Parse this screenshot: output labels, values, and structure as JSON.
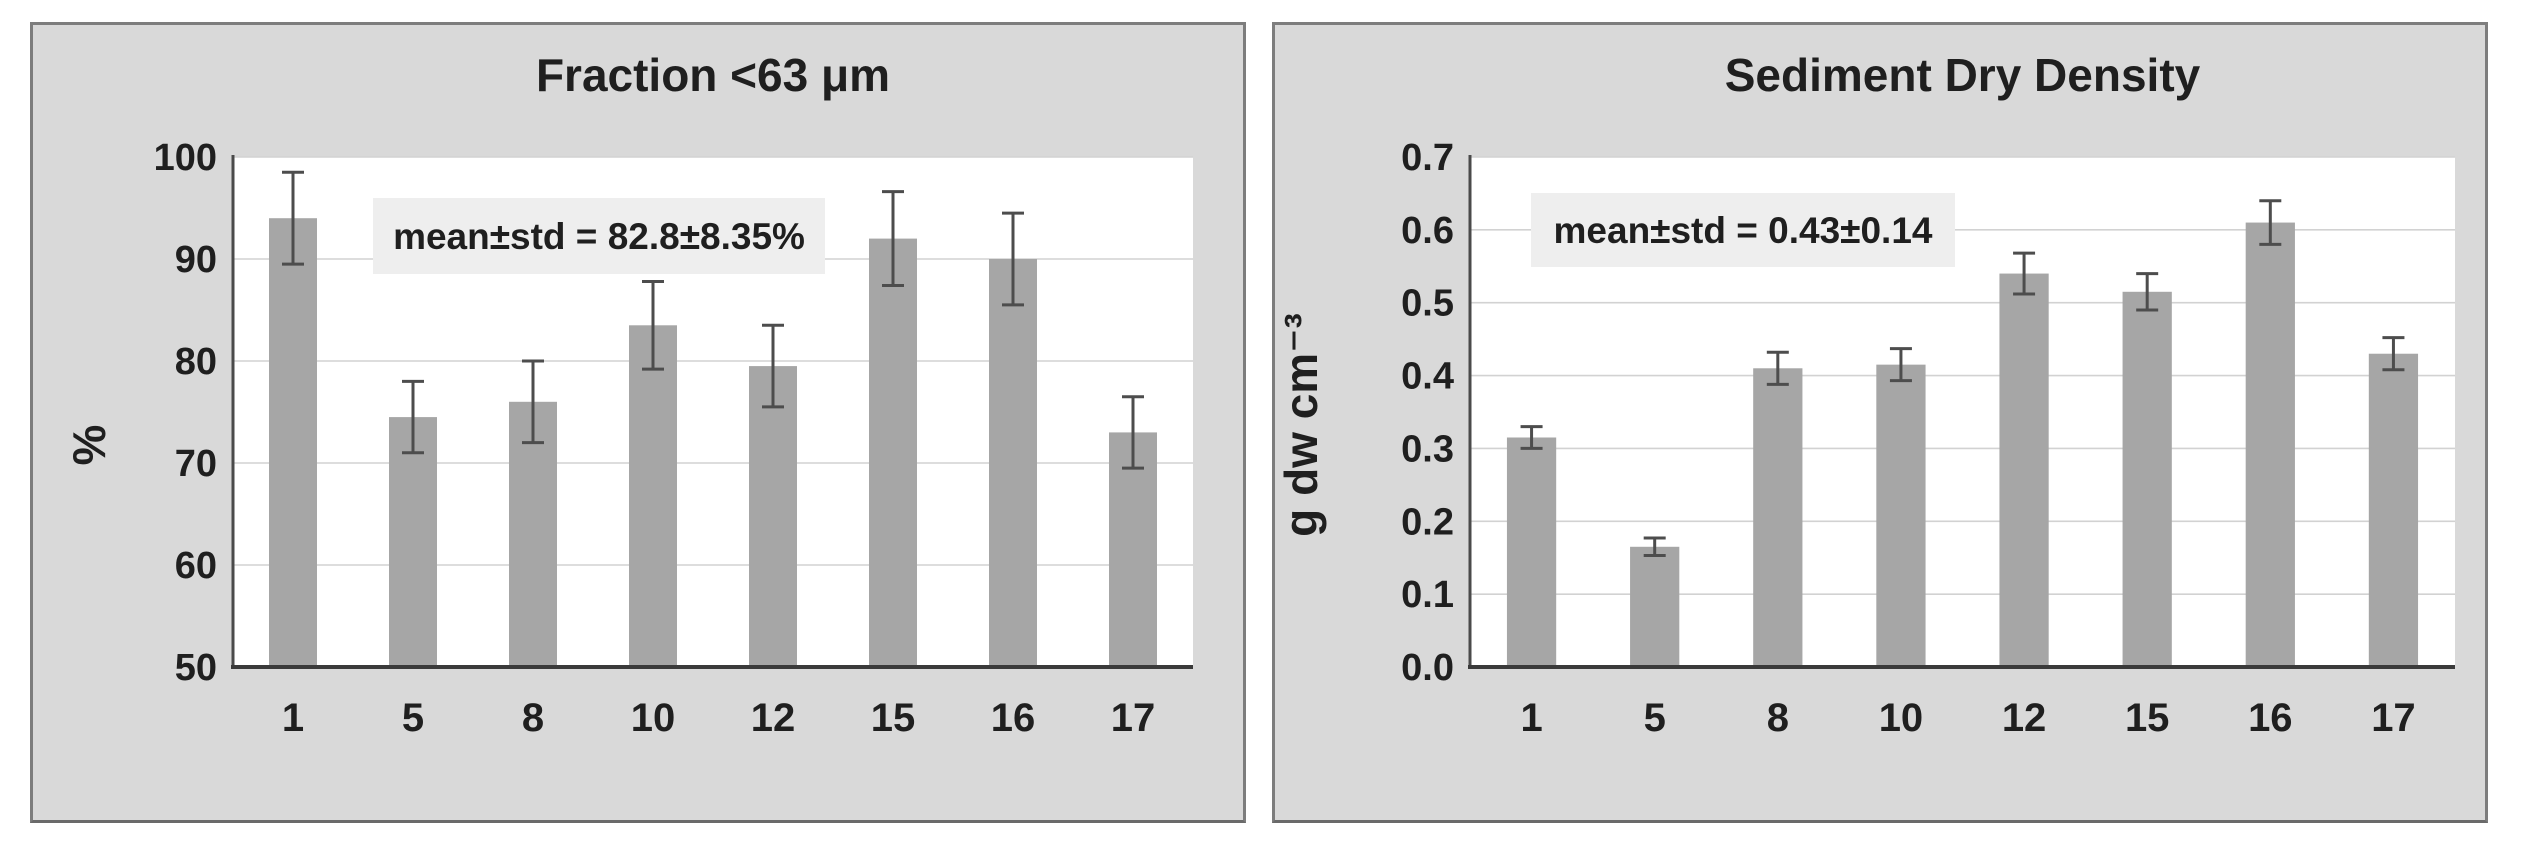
{
  "colors": {
    "page_bg": "#ffffff",
    "panel_bg": "#d9d9d9",
    "panel_border": "#7d7d7d",
    "plot_bg": "#ffffff",
    "gridline": "#d2d2d2",
    "bar": "#a6a6a6",
    "error_bar": "#4d4d4d",
    "x_axis": "#3a3a3a",
    "y_axis": "#4a4a4a",
    "text": "#1f1f1f",
    "annotation_bg": "#eeeeee"
  },
  "chart_data": [
    {
      "type": "bar",
      "title": "Fraction <63 μm",
      "xlabel": "",
      "ylabel": "%",
      "categories": [
        "1",
        "5",
        "8",
        "10",
        "12",
        "15",
        "16",
        "17"
      ],
      "values": [
        94,
        74.5,
        76,
        83.5,
        79.5,
        92,
        90,
        73
      ],
      "errors": [
        4.5,
        3.5,
        4.0,
        4.3,
        4.0,
        4.6,
        4.5,
        3.5
      ],
      "annotation": "mean±std = 82.8±8.35%",
      "ylim": [
        50,
        100
      ],
      "ytick_step": 10,
      "ytick_decimals": 0,
      "grid": true,
      "legend_position": "none",
      "bar_color": "#a6a6a6"
    },
    {
      "type": "bar",
      "title": "Sediment Dry Density",
      "xlabel": "",
      "ylabel": "g dw cm⁻³",
      "categories": [
        "1",
        "5",
        "8",
        "10",
        "12",
        "15",
        "16",
        "17"
      ],
      "values": [
        0.315,
        0.165,
        0.41,
        0.415,
        0.54,
        0.515,
        0.61,
        0.43
      ],
      "errors": [
        0.015,
        0.012,
        0.022,
        0.022,
        0.028,
        0.025,
        0.03,
        0.022
      ],
      "annotation": "mean±std = 0.43±0.14",
      "ylim": [
        0,
        0.7
      ],
      "ytick_step": 0.1,
      "ytick_decimals": 1,
      "grid": true,
      "legend_position": "none",
      "bar_color": "#a6a6a6"
    }
  ]
}
